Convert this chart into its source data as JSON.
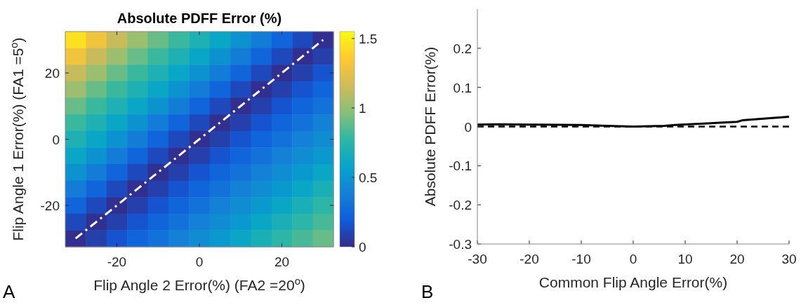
{
  "chart_data": [
    {
      "type": "heatmap",
      "title": "Absolute PDFF Error (%)",
      "xlabel": "Flip Angle 2 Error(%) (FA2 =20$^{o}$)",
      "ylabel": "Flip Angle 1 Error(%) (FA1 =5$^{o}$)",
      "annotations": [
        "A"
      ],
      "categories": [
        null,
        null,
        "-20",
        null,
        null,
        null,
        "0",
        null,
        null,
        null,
        "20",
        null,
        null
      ],
      "y_categories": [
        null,
        null,
        "20",
        null,
        null,
        null,
        "0",
        null,
        null,
        null,
        "-20",
        null,
        null
      ],
      "clim": [
        0,
        1.55
      ],
      "cticks": [
        0,
        0.5,
        1,
        1.5
      ],
      "cells": [
        [
          1.45,
          1.3,
          1.14,
          1.02,
          0.9,
          0.8,
          0.7,
          0.6,
          0.48,
          0.36,
          0.24,
          0.12,
          0.02
        ],
        [
          1.3,
          1.14,
          1.02,
          0.9,
          0.8,
          0.7,
          0.6,
          0.48,
          0.36,
          0.24,
          0.12,
          0.02,
          0.08
        ],
        [
          1.14,
          1.02,
          0.9,
          0.8,
          0.7,
          0.6,
          0.48,
          0.36,
          0.24,
          0.12,
          0.02,
          0.08,
          0.16
        ],
        [
          1.02,
          0.9,
          0.8,
          0.7,
          0.6,
          0.48,
          0.36,
          0.24,
          0.12,
          0.02,
          0.08,
          0.16,
          0.24
        ],
        [
          0.9,
          0.8,
          0.7,
          0.6,
          0.48,
          0.36,
          0.24,
          0.12,
          0.02,
          0.08,
          0.16,
          0.24,
          0.31
        ],
        [
          0.8,
          0.7,
          0.6,
          0.48,
          0.36,
          0.24,
          0.12,
          0.02,
          0.08,
          0.16,
          0.24,
          0.31,
          0.38
        ],
        [
          0.7,
          0.6,
          0.48,
          0.36,
          0.24,
          0.12,
          0.02,
          0.08,
          0.16,
          0.24,
          0.31,
          0.38,
          0.45
        ],
        [
          0.6,
          0.48,
          0.36,
          0.24,
          0.12,
          0.02,
          0.08,
          0.16,
          0.24,
          0.31,
          0.38,
          0.45,
          0.52
        ],
        [
          0.48,
          0.36,
          0.24,
          0.12,
          0.02,
          0.08,
          0.16,
          0.24,
          0.31,
          0.38,
          0.45,
          0.52,
          0.6
        ],
        [
          0.36,
          0.24,
          0.12,
          0.02,
          0.08,
          0.16,
          0.24,
          0.31,
          0.38,
          0.45,
          0.52,
          0.6,
          0.68
        ],
        [
          0.24,
          0.12,
          0.02,
          0.08,
          0.16,
          0.24,
          0.31,
          0.38,
          0.45,
          0.52,
          0.6,
          0.68,
          0.76
        ],
        [
          0.12,
          0.02,
          0.08,
          0.16,
          0.24,
          0.31,
          0.38,
          0.45,
          0.52,
          0.6,
          0.68,
          0.76,
          0.83
        ],
        [
          0.02,
          0.08,
          0.16,
          0.24,
          0.31,
          0.38,
          0.45,
          0.52,
          0.6,
          0.68,
          0.76,
          0.83,
          0.9
        ]
      ],
      "series": [
        {
          "type": "line",
          "values": [
            12,
            11,
            10,
            9,
            8,
            7,
            6,
            5,
            4,
            3,
            2,
            1,
            0
          ],
          "color": "#ffffff",
          "line_style": "dashed"
        }
      ]
    },
    {
      "type": "line",
      "xlabel": "Common Flip Angle Error(%)",
      "ylabel": "Absolute PDFF Error(%)",
      "annotations": [
        "B"
      ],
      "xlim": [
        -30,
        30
      ],
      "xticks": [
        -30,
        -20,
        -10,
        0,
        10,
        20,
        30
      ],
      "ylim": [
        -0.3,
        0.3
      ],
      "yticks": [
        -0.3,
        -0.2,
        -0.1,
        0,
        0.1,
        0.2
      ],
      "series": [
        {
          "x": [
            -30,
            -26,
            -20,
            -10,
            -5,
            0,
            6,
            8,
            20,
            21,
            30
          ],
          "values": [
            0.005,
            0.006,
            0.005,
            0.004,
            0.002,
            0,
            0.002,
            0.004,
            0.012,
            0.016,
            0.025
          ],
          "color": "#000000"
        }
      ],
      "ref_lines": [
        {
          "axis": "y",
          "value": 0,
          "color": "#000000",
          "line_style": "dashed"
        }
      ]
    }
  ]
}
